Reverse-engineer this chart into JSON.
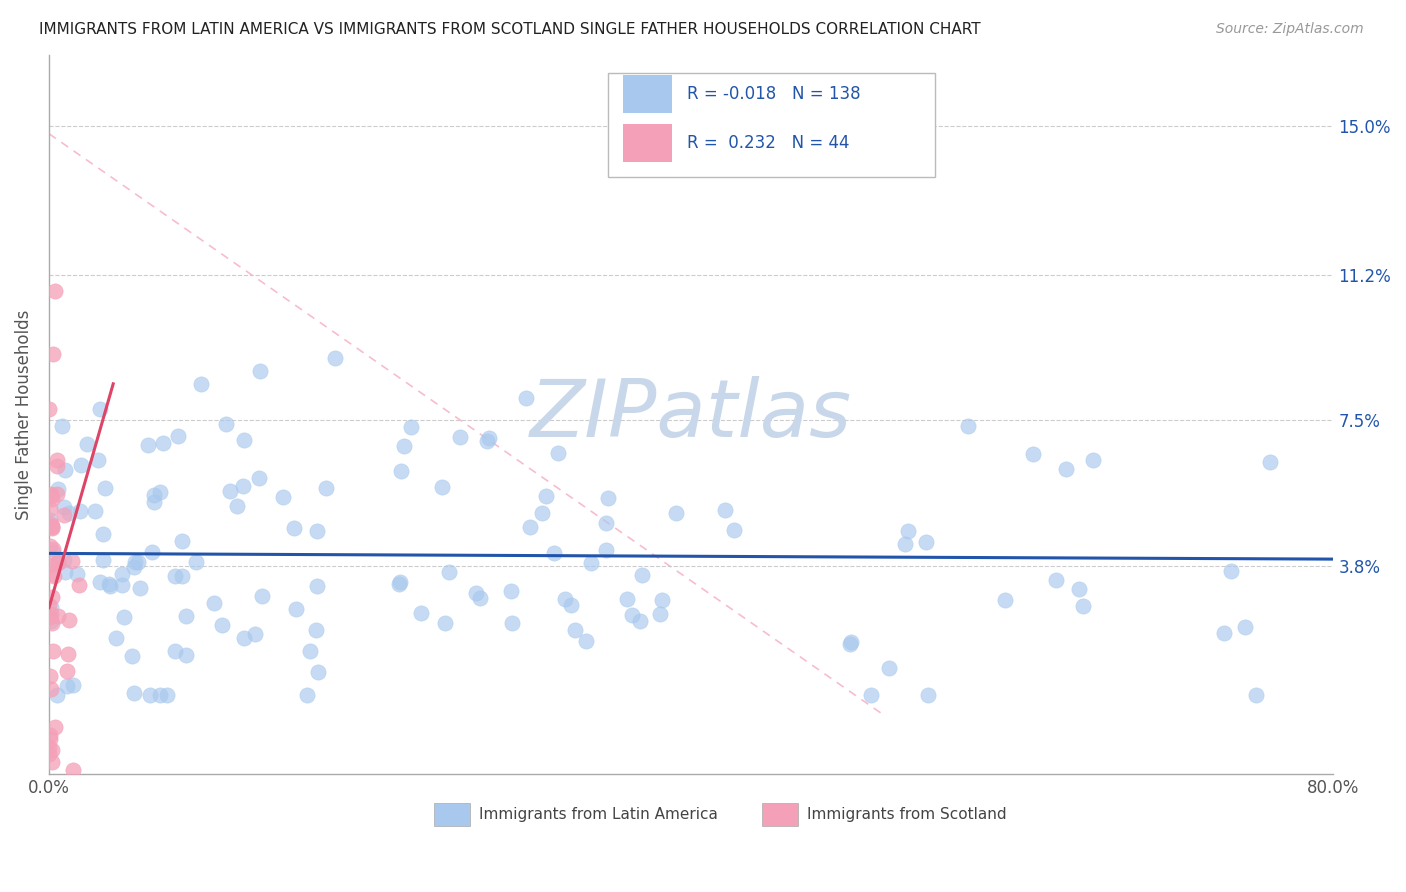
{
  "title": "IMMIGRANTS FROM LATIN AMERICA VS IMMIGRANTS FROM SCOTLAND SINGLE FATHER HOUSEHOLDS CORRELATION CHART",
  "source": "Source: ZipAtlas.com",
  "ylabel": "Single Father Households",
  "legend_label1": "Immigrants from Latin America",
  "legend_label2": "Immigrants from Scotland",
  "R1": -0.018,
  "N1": 138,
  "R2": 0.232,
  "N2": 44,
  "xlim": [
    0.0,
    0.8
  ],
  "ylim": [
    -0.015,
    0.168
  ],
  "yticks": [
    0.038,
    0.075,
    0.112,
    0.15
  ],
  "ytick_labels": [
    "3.8%",
    "7.5%",
    "11.2%",
    "15.0%"
  ],
  "xticks": [
    0.0,
    0.1,
    0.2,
    0.3,
    0.4,
    0.5,
    0.6,
    0.7,
    0.8
  ],
  "xtick_labels": [
    "0.0%",
    "",
    "",
    "",
    "",
    "",
    "",
    "",
    "80.0%"
  ],
  "color_blue": "#A8C8EE",
  "color_pink": "#F4A0B8",
  "trend_blue": "#2255AA",
  "trend_pink": "#DD4466",
  "diag_color": "#F4A0B8",
  "watermark": "ZIPatlas",
  "watermark_color": "#C8D8EA",
  "background_color": "#FFFFFF",
  "legend_color": "#2255AA",
  "grid_color": "#CCCCCC",
  "spine_color": "#AAAAAA"
}
